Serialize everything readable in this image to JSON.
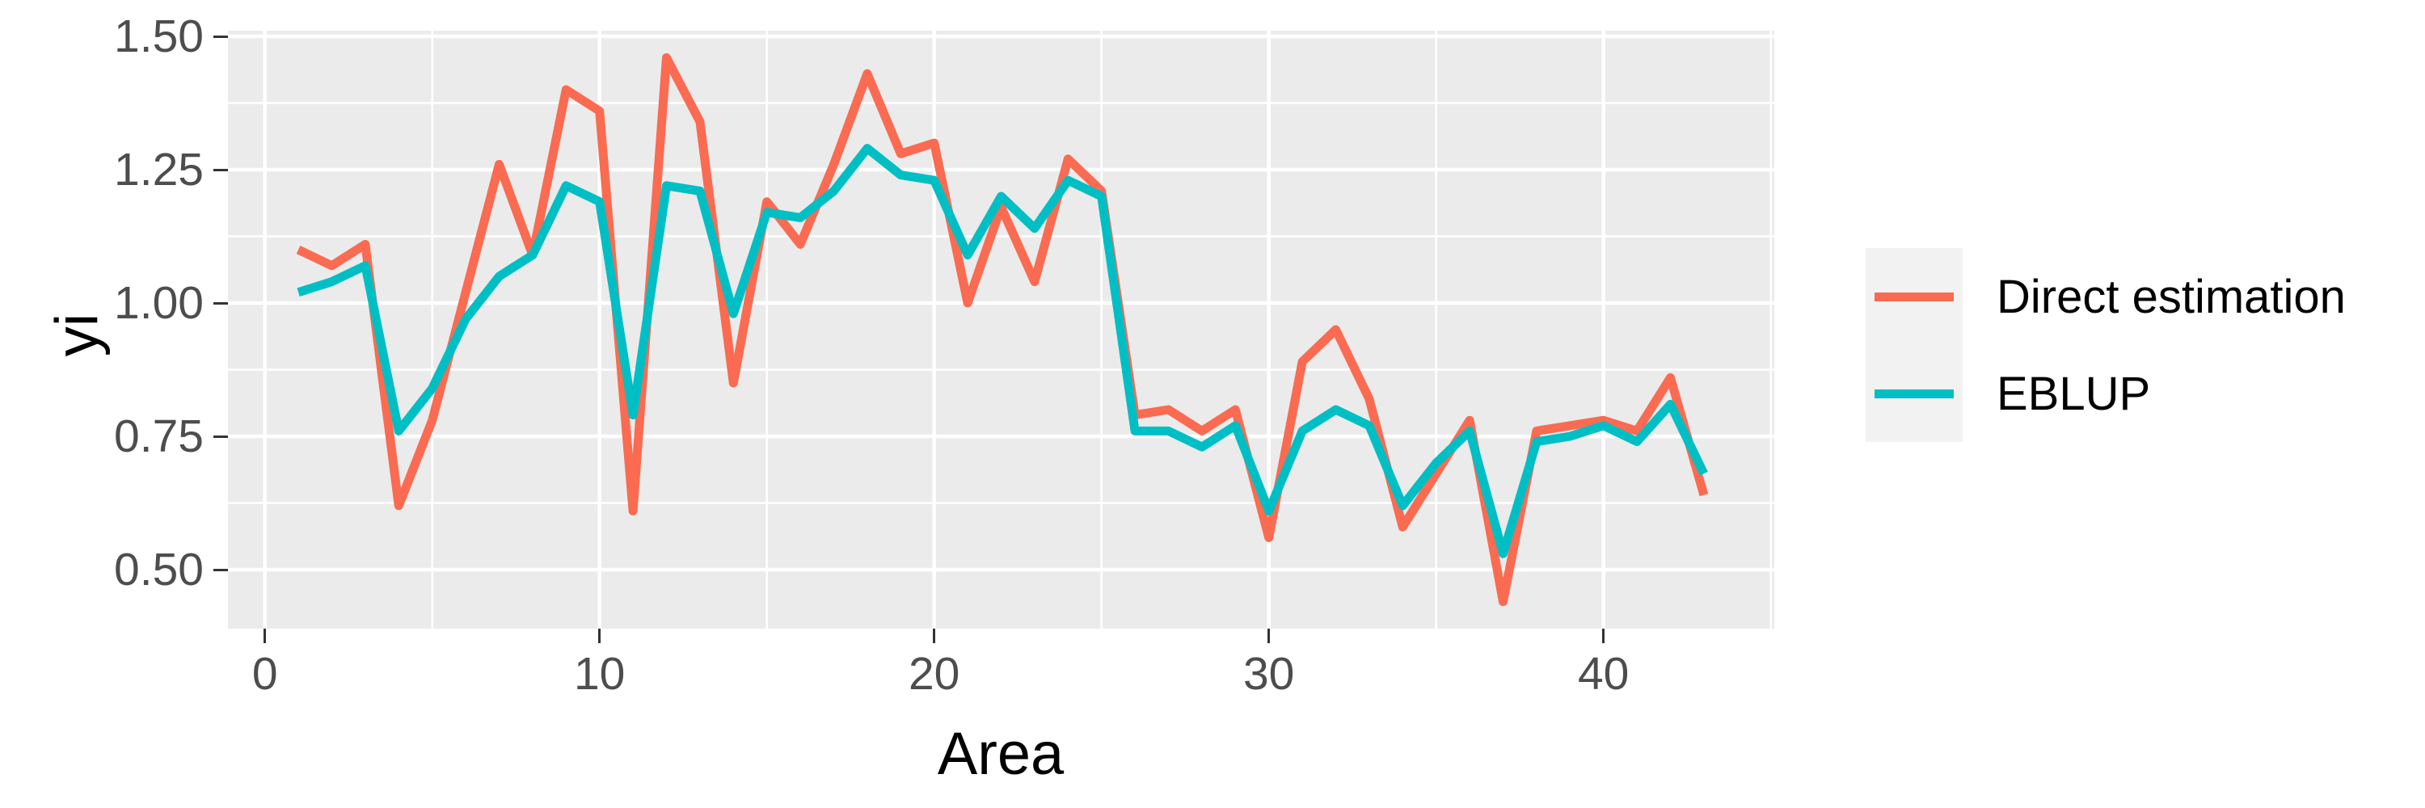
{
  "chart_data": {
    "type": "line",
    "title": "",
    "xlabel": "Area",
    "ylabel": "yi",
    "x": [
      1,
      2,
      3,
      4,
      5,
      6,
      7,
      8,
      9,
      10,
      11,
      12,
      13,
      14,
      15,
      16,
      17,
      18,
      19,
      20,
      21,
      22,
      23,
      24,
      25,
      26,
      27,
      28,
      29,
      30,
      31,
      32,
      33,
      34,
      35,
      36,
      37,
      38,
      39,
      40,
      41,
      42,
      43
    ],
    "series": [
      {
        "name": "Direct estimation",
        "color": "#FA6B51",
        "values": [
          1.1,
          1.07,
          1.11,
          0.62,
          0.78,
          1.02,
          1.26,
          1.09,
          1.4,
          1.36,
          0.61,
          1.46,
          1.34,
          0.85,
          1.19,
          1.11,
          1.26,
          1.43,
          1.28,
          1.3,
          1.0,
          1.18,
          1.04,
          1.27,
          1.21,
          0.79,
          0.8,
          0.76,
          0.8,
          0.56,
          0.89,
          0.95,
          0.82,
          0.58,
          0.68,
          0.78,
          0.44,
          0.76,
          0.77,
          0.78,
          0.76,
          0.86,
          0.64
        ]
      },
      {
        "name": "EBLUP",
        "color": "#00BFC4",
        "values": [
          1.02,
          1.04,
          1.07,
          0.76,
          0.84,
          0.97,
          1.05,
          1.09,
          1.22,
          1.19,
          0.79,
          1.22,
          1.21,
          0.98,
          1.17,
          1.16,
          1.21,
          1.29,
          1.24,
          1.23,
          1.09,
          1.2,
          1.14,
          1.23,
          1.2,
          0.76,
          0.76,
          0.73,
          0.77,
          0.61,
          0.76,
          0.8,
          0.77,
          0.62,
          0.7,
          0.76,
          0.53,
          0.74,
          0.75,
          0.77,
          0.74,
          0.81,
          0.68
        ]
      }
    ],
    "xlim": [
      -1.1,
      45.1
    ],
    "ylim": [
      0.389,
      1.511
    ],
    "x_ticks": [
      0,
      10,
      20,
      30,
      40
    ],
    "y_ticks": [
      1.5,
      1.25,
      1.0,
      0.75,
      0.5
    ],
    "x_minor_ticks": [
      5,
      15,
      25,
      35,
      45
    ],
    "y_minor_ticks": [
      1.375,
      1.125,
      0.875,
      0.625
    ],
    "grid": true,
    "legend_position": "right",
    "panel_bg": "#EBEBEB",
    "grid_color": "#FFFFFF",
    "tick_color": "#333333",
    "tick_label_color": "#4D4D4D"
  },
  "axes": {
    "x_title": "Area",
    "y_title": "yi",
    "x_tick_labels": [
      "0",
      "10",
      "20",
      "30",
      "40"
    ],
    "y_tick_labels": [
      "1.50",
      "1.25",
      "1.00",
      "0.75",
      "0.50"
    ]
  },
  "legend": {
    "items": [
      {
        "label": "Direct estimation"
      },
      {
        "label": "EBLUP"
      }
    ]
  }
}
